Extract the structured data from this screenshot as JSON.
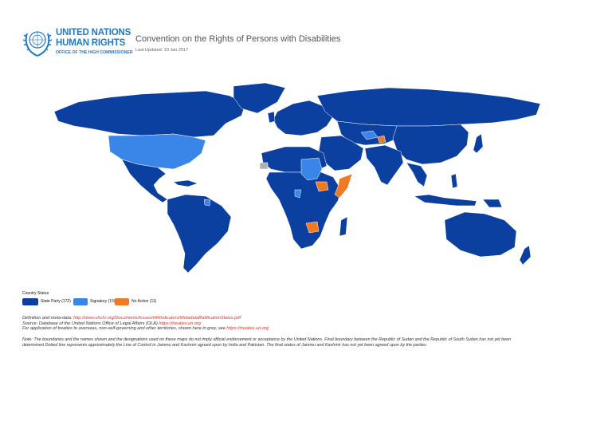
{
  "header": {
    "org_line1": "UNITED NATIONS",
    "org_line2": "HUMAN RIGHTS",
    "org_line3": "OFFICE OF THE HIGH COMMISSIONER",
    "title": "Convention on the Rights of Persons with Disabilities",
    "last_updated": "Last Updated: 10 Jan 2017"
  },
  "colors": {
    "state_party": "#0b3fa0",
    "signatory": "#3a86e8",
    "no_action": "#ef7a24",
    "territories_grey": "#b0b0b0",
    "brand": "#1f78c8"
  },
  "legend": {
    "title": "Country Status",
    "items": [
      {
        "label": "State Party (172)",
        "color": "#0b3fa0"
      },
      {
        "label": "Signatory (15)",
        "color": "#3a86e8"
      },
      {
        "label": "No Action (11)",
        "color": "#ef7a24"
      }
    ]
  },
  "notes": {
    "definition_label": "Definition and meta-data: ",
    "definition_link": "http://www.ohchr.org/Documents/Issues/HRIndicators/MetadataRatificationStatus.pdf",
    "source_label": "Source: Database of the United Nations Office of Legal Affairs (OLA) ",
    "source_link": "https://treaties.un.org",
    "application_label": "For application of treaties to overseas, non-self-governing and other territories, shown here in grey, see ",
    "application_link": "https://treaties.un.org",
    "disclaimer": "Note: The boundaries and the names shown and the designations used on these maps do not imply official endorsement or acceptance by the United Nations. Final boundary between the Republic of Sudan and the Republic of South Sudan has not yet been determined Dotted line represents approximately the Line of Control in Jammu and Kashmir agreed upon by India and Pakistan. The final status of Jammu and Kashmir has not yet been agreed upon by the parties."
  }
}
